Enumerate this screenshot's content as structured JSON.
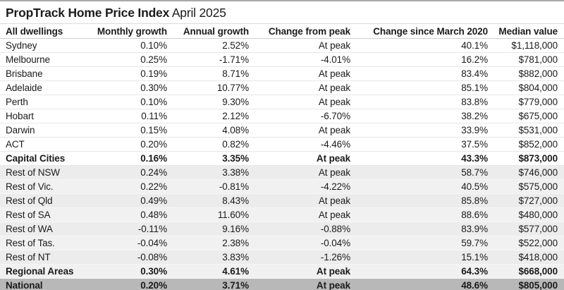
{
  "colors": {
    "top_border": "#a9a9a9",
    "title_rule": "#dcdcdc",
    "header_rule": "#cfcfcf",
    "row_divider": "#e7e7e7",
    "regional_row_bg": "#ececec",
    "regional_row_alt_bg": "#f1f1f1",
    "regional_row_divider": "#f6f6f6",
    "national_row_bg": "#b8b8b8",
    "text": "#1b1b1b",
    "background": "#ffffff"
  },
  "chart_data": {
    "type": "table",
    "title": "PropTrack Home Price Index",
    "subtitle": "April 2025",
    "columns": [
      "All dwellings",
      "Monthly growth",
      "Annual growth",
      "Change from peak",
      "Change since March 2020",
      "Median value"
    ],
    "column_keys": [
      "region",
      "monthly-growth",
      "annual-growth",
      "change-from-peak",
      "change-since-march-2020",
      "median-value"
    ],
    "rows": [
      {
        "cells": [
          "Sydney",
          "0.10%",
          "2.52%",
          "At peak",
          "40.1%",
          "$1,118,000"
        ],
        "section": "capitals",
        "emphasis": false
      },
      {
        "cells": [
          "Melbourne",
          "0.25%",
          "-1.71%",
          "-4.01%",
          "16.2%",
          "$781,000"
        ],
        "section": "capitals",
        "emphasis": false
      },
      {
        "cells": [
          "Brisbane",
          "0.19%",
          "8.71%",
          "At peak",
          "83.4%",
          "$882,000"
        ],
        "section": "capitals",
        "emphasis": false
      },
      {
        "cells": [
          "Adelaide",
          "0.30%",
          "10.77%",
          "At peak",
          "85.1%",
          "$804,000"
        ],
        "section": "capitals",
        "emphasis": false
      },
      {
        "cells": [
          "Perth",
          "0.10%",
          "9.30%",
          "At peak",
          "83.8%",
          "$779,000"
        ],
        "section": "capitals",
        "emphasis": false
      },
      {
        "cells": [
          "Hobart",
          "0.11%",
          "2.12%",
          "-6.70%",
          "38.2%",
          "$675,000"
        ],
        "section": "capitals",
        "emphasis": false
      },
      {
        "cells": [
          "Darwin",
          "0.15%",
          "4.08%",
          "At peak",
          "33.9%",
          "$531,000"
        ],
        "section": "capitals",
        "emphasis": false
      },
      {
        "cells": [
          "ACT",
          "0.20%",
          "0.82%",
          "-4.46%",
          "37.5%",
          "$852,000"
        ],
        "section": "capitals",
        "emphasis": false
      },
      {
        "cells": [
          "Capital Cities",
          "0.16%",
          "3.35%",
          "At peak",
          "43.3%",
          "$873,000"
        ],
        "section": "capitals",
        "emphasis": true
      },
      {
        "cells": [
          "Rest of NSW",
          "0.24%",
          "3.38%",
          "At peak",
          "58.7%",
          "$746,000"
        ],
        "section": "regional",
        "emphasis": false
      },
      {
        "cells": [
          "Rest of Vic.",
          "0.22%",
          "-0.81%",
          "-4.22%",
          "40.5%",
          "$575,000"
        ],
        "section": "regional",
        "emphasis": false
      },
      {
        "cells": [
          "Rest of Qld",
          "0.49%",
          "8.43%",
          "At peak",
          "85.8%",
          "$727,000"
        ],
        "section": "regional",
        "emphasis": false
      },
      {
        "cells": [
          "Rest of SA",
          "0.48%",
          "11.60%",
          "At peak",
          "88.6%",
          "$480,000"
        ],
        "section": "regional",
        "emphasis": false
      },
      {
        "cells": [
          "Rest of WA",
          "-0.11%",
          "9.16%",
          "-0.88%",
          "83.9%",
          "$577,000"
        ],
        "section": "regional",
        "emphasis": false
      },
      {
        "cells": [
          "Rest of Tas.",
          "-0.04%",
          "2.38%",
          "-0.04%",
          "59.7%",
          "$522,000"
        ],
        "section": "regional",
        "emphasis": false
      },
      {
        "cells": [
          "Rest of NT",
          "-0.08%",
          "3.83%",
          "-1.26%",
          "15.1%",
          "$418,000"
        ],
        "section": "regional",
        "emphasis": false
      },
      {
        "cells": [
          "Regional Areas",
          "0.30%",
          "4.61%",
          "At peak",
          "64.3%",
          "$668,000"
        ],
        "section": "regional",
        "emphasis": true
      },
      {
        "cells": [
          "National",
          "0.20%",
          "3.71%",
          "At peak",
          "48.6%",
          "$805,000"
        ],
        "section": "national",
        "emphasis": true
      }
    ]
  }
}
